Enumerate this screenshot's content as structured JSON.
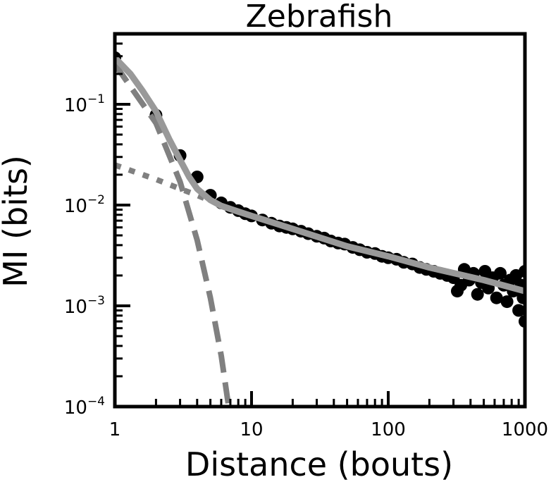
{
  "chart_data": {
    "type": "scatter",
    "title": "Zebrafish",
    "xlabel": "Distance (bouts)",
    "ylabel": "MI (bits)",
    "xscale": "log",
    "yscale": "log",
    "xlim": [
      1,
      1000
    ],
    "ylim": [
      0.0001,
      0.5
    ],
    "grid": false,
    "x_ticks": [
      {
        "value": 1,
        "label": "1"
      },
      {
        "value": 10,
        "label": "10"
      },
      {
        "value": 100,
        "label": "100"
      },
      {
        "value": 1000,
        "label": "1000"
      }
    ],
    "y_ticks": [
      {
        "value": 0.0001,
        "base": "10",
        "exp": "−4"
      },
      {
        "value": 0.001,
        "base": "10",
        "exp": "−3"
      },
      {
        "value": 0.01,
        "base": "10",
        "exp": "−2"
      },
      {
        "value": 0.1,
        "base": "10",
        "exp": "−1"
      }
    ],
    "series": [
      {
        "style": "markers",
        "color": "#000000",
        "points": [
          [
            1,
            0.29
          ],
          [
            2,
            0.078
          ],
          [
            3,
            0.031
          ],
          [
            4,
            0.019
          ],
          [
            5,
            0.0125
          ],
          [
            6,
            0.0105
          ],
          [
            7,
            0.0095
          ],
          [
            8,
            0.0088
          ],
          [
            9,
            0.0082
          ],
          [
            10,
            0.0078
          ],
          [
            12,
            0.0071
          ],
          [
            14,
            0.0066
          ],
          [
            16,
            0.0062
          ],
          [
            18,
            0.006
          ],
          [
            20,
            0.0058
          ],
          [
            23,
            0.0055
          ],
          [
            26,
            0.0052
          ],
          [
            30,
            0.0049
          ],
          [
            34,
            0.0047
          ],
          [
            38,
            0.0044
          ],
          [
            43,
            0.0042
          ],
          [
            48,
            0.0041
          ],
          [
            55,
            0.0038
          ],
          [
            62,
            0.0036
          ],
          [
            70,
            0.0034
          ],
          [
            80,
            0.0033
          ],
          [
            90,
            0.0031
          ],
          [
            100,
            0.003
          ],
          [
            115,
            0.0029
          ],
          [
            130,
            0.0027
          ],
          [
            150,
            0.0026
          ],
          [
            170,
            0.0024
          ],
          [
            190,
            0.0023
          ],
          [
            215,
            0.0022
          ],
          [
            240,
            0.0021
          ],
          [
            270,
            0.002
          ],
          [
            300,
            0.0019
          ],
          [
            320,
            0.0014
          ],
          [
            340,
            0.0016
          ],
          [
            360,
            0.0023
          ],
          [
            390,
            0.0018
          ],
          [
            420,
            0.0021
          ],
          [
            450,
            0.0013
          ],
          [
            480,
            0.0017
          ],
          [
            510,
            0.0022
          ],
          [
            540,
            0.0015
          ],
          [
            580,
            0.0019
          ],
          [
            620,
            0.0012
          ],
          [
            660,
            0.0021
          ],
          [
            700,
            0.0016
          ],
          [
            740,
            0.0011
          ],
          [
            780,
            0.0018
          ],
          [
            820,
            0.0014
          ],
          [
            860,
            0.002
          ],
          [
            900,
            0.0009
          ],
          [
            940,
            0.0016
          ],
          [
            970,
            0.0012
          ],
          [
            1000,
            0.0007
          ],
          [
            1000,
            0.0022
          ],
          [
            1000,
            0.0014
          ]
        ]
      },
      {
        "style": "solid",
        "color": "#999999",
        "points": [
          [
            1,
            0.29
          ],
          [
            1.3,
            0.2
          ],
          [
            1.6,
            0.135
          ],
          [
            2,
            0.085
          ],
          [
            2.5,
            0.045
          ],
          [
            3,
            0.028
          ],
          [
            3.5,
            0.019
          ],
          [
            4,
            0.0145
          ],
          [
            5,
            0.0112
          ],
          [
            6,
            0.0098
          ],
          [
            8,
            0.0086
          ],
          [
            10,
            0.0078
          ],
          [
            20,
            0.0058
          ],
          [
            50,
            0.0039
          ],
          [
            100,
            0.0031
          ],
          [
            200,
            0.0024
          ],
          [
            500,
            0.0018
          ],
          [
            1000,
            0.0014
          ]
        ]
      },
      {
        "style": "dashed",
        "color": "#808080",
        "points": [
          [
            1,
            0.25
          ],
          [
            2,
            0.065
          ],
          [
            3,
            0.017
          ],
          [
            4,
            0.0045
          ],
          [
            5,
            0.0012
          ],
          [
            6,
            0.00032
          ],
          [
            6.8,
            0.0001
          ]
        ]
      },
      {
        "style": "dotted",
        "color": "#808080",
        "points": [
          [
            1,
            0.025
          ],
          [
            2,
            0.018
          ],
          [
            3,
            0.0145
          ],
          [
            4,
            0.0125
          ],
          [
            5,
            0.011
          ]
        ]
      }
    ]
  }
}
